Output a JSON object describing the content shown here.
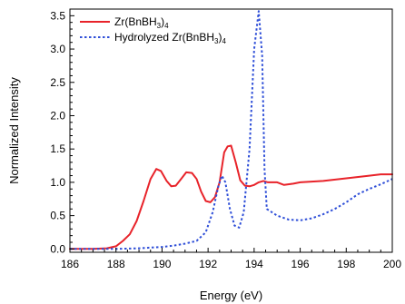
{
  "chart_data": {
    "type": "line",
    "title": "",
    "xlabel": "Energy (eV)",
    "ylabel": "Normalized Intensity",
    "xlim": [
      186,
      200
    ],
    "ylim": [
      -0.05,
      3.6
    ],
    "x_ticks": [
      "186",
      "188",
      "190",
      "192",
      "194",
      "196",
      "198",
      "200"
    ],
    "y_ticks": [
      "0.0",
      "0.5",
      "1.0",
      "1.5",
      "2.0",
      "2.5",
      "3.0",
      "3.5"
    ],
    "grid": false,
    "legend_position": "top-left",
    "legend": [
      {
        "base": "Zr(BnBH",
        "sub1": "3",
        "mid": ")",
        "sub2": "4",
        "color": "#e8232a",
        "style": "solid"
      },
      {
        "base": "Hydrolyzed Zr(BnBH",
        "sub1": "3",
        "mid": ")",
        "sub2": "4",
        "color": "#2f4fd8",
        "style": "dotted"
      }
    ],
    "series": [
      {
        "color": "#e8232a",
        "style": "solid",
        "points": [
          [
            186,
            0.0
          ],
          [
            187,
            0.0
          ],
          [
            187.6,
            0.01
          ],
          [
            188,
            0.04
          ],
          [
            188.3,
            0.12
          ],
          [
            188.6,
            0.22
          ],
          [
            188.9,
            0.42
          ],
          [
            189.2,
            0.72
          ],
          [
            189.5,
            1.05
          ],
          [
            189.75,
            1.2
          ],
          [
            189.95,
            1.17
          ],
          [
            190.2,
            1.02
          ],
          [
            190.4,
            0.94
          ],
          [
            190.6,
            0.95
          ],
          [
            190.85,
            1.06
          ],
          [
            191.05,
            1.15
          ],
          [
            191.3,
            1.14
          ],
          [
            191.5,
            1.05
          ],
          [
            191.7,
            0.86
          ],
          [
            191.9,
            0.72
          ],
          [
            192.1,
            0.7
          ],
          [
            192.3,
            0.78
          ],
          [
            192.5,
            1.0
          ],
          [
            192.7,
            1.45
          ],
          [
            192.85,
            1.54
          ],
          [
            193.0,
            1.55
          ],
          [
            193.2,
            1.3
          ],
          [
            193.4,
            1.03
          ],
          [
            193.6,
            0.95
          ],
          [
            193.8,
            0.94
          ],
          [
            194.0,
            0.96
          ],
          [
            194.2,
            1.0
          ],
          [
            194.4,
            1.02
          ],
          [
            194.6,
            1.0
          ],
          [
            195.0,
            1.0
          ],
          [
            195.3,
            0.96
          ],
          [
            195.7,
            0.98
          ],
          [
            196,
            1.0
          ],
          [
            197,
            1.02
          ],
          [
            198,
            1.06
          ],
          [
            199,
            1.1
          ],
          [
            199.5,
            1.12
          ],
          [
            200,
            1.12
          ]
        ]
      },
      {
        "color": "#2f4fd8",
        "style": "dotted",
        "points": [
          [
            186,
            0.0
          ],
          [
            188,
            0.0
          ],
          [
            189,
            0.01
          ],
          [
            190,
            0.03
          ],
          [
            190.5,
            0.05
          ],
          [
            191,
            0.08
          ],
          [
            191.5,
            0.12
          ],
          [
            191.9,
            0.25
          ],
          [
            192.2,
            0.55
          ],
          [
            192.45,
            0.95
          ],
          [
            192.6,
            1.1
          ],
          [
            192.75,
            1.0
          ],
          [
            192.95,
            0.6
          ],
          [
            193.15,
            0.35
          ],
          [
            193.35,
            0.32
          ],
          [
            193.55,
            0.55
          ],
          [
            193.8,
            1.5
          ],
          [
            194.0,
            3.0
          ],
          [
            194.2,
            3.57
          ],
          [
            194.35,
            2.9
          ],
          [
            194.45,
            1.2
          ],
          [
            194.55,
            0.6
          ],
          [
            195,
            0.5
          ],
          [
            195.5,
            0.44
          ],
          [
            196,
            0.43
          ],
          [
            196.5,
            0.46
          ],
          [
            197,
            0.52
          ],
          [
            197.5,
            0.6
          ],
          [
            198,
            0.7
          ],
          [
            198.5,
            0.82
          ],
          [
            199,
            0.9
          ],
          [
            199.5,
            0.97
          ],
          [
            200,
            1.05
          ]
        ]
      }
    ]
  }
}
